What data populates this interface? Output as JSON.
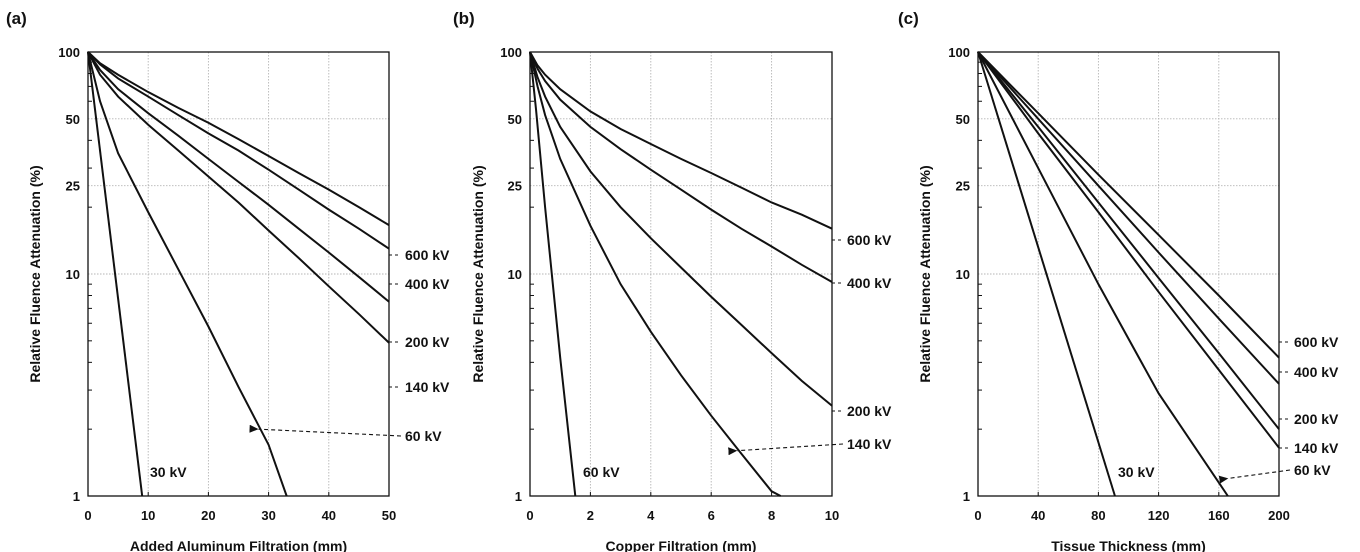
{
  "chart_data": [
    {
      "panel": "(a)",
      "type": "line",
      "xlabel": "Added Aluminum Filtration (mm)",
      "ylabel": "Relative Fluence Attenuation (%)",
      "xlim": [
        0,
        50
      ],
      "ylim": [
        1,
        100
      ],
      "yscale": "log",
      "xticks": [
        0,
        10,
        20,
        30,
        40,
        50
      ],
      "yticks": [
        1,
        10,
        25,
        50,
        100
      ],
      "grid": true,
      "series": [
        {
          "name": "30 kV",
          "x": [
            0,
            9
          ],
          "y": [
            100,
            1
          ]
        },
        {
          "name": "60 kV",
          "x": [
            0,
            2,
            5,
            10,
            15,
            20,
            25,
            30,
            33
          ],
          "y": [
            100,
            60,
            35,
            19,
            10.5,
            5.8,
            3.1,
            1.7,
            1
          ]
        },
        {
          "name": "140 kV",
          "x": [
            0,
            2,
            5,
            10,
            15,
            20,
            25,
            30,
            35,
            40,
            45,
            50
          ],
          "y": [
            100,
            79,
            63,
            47,
            36,
            27.5,
            21,
            15.7,
            11.8,
            8.8,
            6.6,
            4.9
          ]
        },
        {
          "name": "200 kV",
          "x": [
            0,
            2,
            5,
            10,
            15,
            20,
            25,
            30,
            35,
            40,
            45,
            50
          ],
          "y": [
            100,
            83,
            68,
            53,
            42,
            33,
            26,
            20.5,
            16,
            12.5,
            9.7,
            7.5
          ]
        },
        {
          "name": "400 kV",
          "x": [
            0,
            2,
            5,
            10,
            15,
            20,
            25,
            30,
            35,
            40,
            45,
            50
          ],
          "y": [
            100,
            88,
            76,
            63,
            52,
            43,
            36,
            29.5,
            24,
            19.5,
            16,
            13
          ]
        },
        {
          "name": "600 kV",
          "x": [
            0,
            2,
            5,
            10,
            15,
            20,
            25,
            30,
            35,
            40,
            45,
            50
          ],
          "y": [
            100,
            89,
            79,
            66,
            56,
            48,
            40.5,
            34,
            28.5,
            24,
            20,
            16.6
          ]
        }
      ],
      "annotations": [
        {
          "label": "30 kV",
          "placement": "inside"
        },
        {
          "label": "60 kV",
          "placement": "right",
          "arrow_to": {
            "x": 28,
            "y": 2
          }
        }
      ]
    },
    {
      "panel": "(b)",
      "type": "line",
      "xlabel": "Copper Filtration (mm)",
      "ylabel": "Relative Fluence Attenuation (%)",
      "xlim": [
        0,
        10
      ],
      "ylim": [
        1,
        100
      ],
      "yscale": "log",
      "xticks": [
        0,
        2,
        4,
        6,
        8,
        10
      ],
      "yticks": [
        1,
        10,
        25,
        50,
        100
      ],
      "grid": true,
      "series": [
        {
          "name": "60 kV",
          "x": [
            0,
            0.2,
            0.5,
            1,
            1.5
          ],
          "y": [
            100,
            55,
            20,
            4.2,
            1
          ]
        },
        {
          "name": "140 kV",
          "x": [
            0,
            0.25,
            0.5,
            1,
            2,
            3,
            4,
            5,
            6,
            7,
            8,
            8.3
          ],
          "y": [
            100,
            70,
            52,
            33,
            16.5,
            9,
            5.5,
            3.5,
            2.3,
            1.55,
            1.05,
            1
          ]
        },
        {
          "name": "200 kV",
          "x": [
            0,
            0.25,
            0.5,
            1,
            2,
            3,
            4,
            5,
            6,
            7,
            8,
            9,
            10
          ],
          "y": [
            100,
            77,
            63,
            46,
            29,
            20,
            14.5,
            10.7,
            7.9,
            5.9,
            4.4,
            3.3,
            2.55
          ]
        },
        {
          "name": "400 kV",
          "x": [
            0,
            0.25,
            0.5,
            1,
            2,
            3,
            4,
            5,
            6,
            7,
            8,
            9,
            10
          ],
          "y": [
            100,
            84,
            74,
            61,
            46,
            36.5,
            29.5,
            24,
            19.5,
            16,
            13.3,
            11,
            9.2
          ]
        },
        {
          "name": "600 kV",
          "x": [
            0,
            0.25,
            0.5,
            1,
            2,
            3,
            4,
            5,
            6,
            7,
            8,
            9,
            10
          ],
          "y": [
            100,
            87,
            79,
            68,
            54,
            45,
            38.5,
            33,
            28.5,
            24.5,
            21,
            18.5,
            16
          ]
        }
      ],
      "annotations": [
        {
          "label": "60 kV",
          "placement": "inside"
        },
        {
          "label": "140 kV",
          "placement": "right",
          "arrow_to": {
            "x": 6.8,
            "y": 1.6
          }
        }
      ]
    },
    {
      "panel": "(c)",
      "type": "line",
      "xlabel": "Tissue Thickness (mm)",
      "ylabel": "Relative Fluence Attenuation (%)",
      "xlim": [
        0,
        200
      ],
      "ylim": [
        1,
        100
      ],
      "yscale": "log",
      "xticks": [
        0,
        40,
        80,
        120,
        160,
        200
      ],
      "yticks": [
        1,
        10,
        25,
        50,
        100
      ],
      "grid": true,
      "series": [
        {
          "name": "30 kV",
          "x": [
            0,
            91
          ],
          "y": [
            100,
            1
          ]
        },
        {
          "name": "60 kV",
          "x": [
            0,
            40,
            80,
            120,
            160,
            166
          ],
          "y": [
            100,
            30,
            9,
            2.9,
            1.15,
            1
          ]
        },
        {
          "name": "140 kV",
          "x": [
            0,
            40,
            80,
            120,
            160,
            200
          ],
          "y": [
            100,
            43,
            19,
            8.3,
            3.7,
            1.65
          ]
        },
        {
          "name": "200 kV",
          "x": [
            0,
            40,
            80,
            120,
            160,
            200
          ],
          "y": [
            100,
            46,
            21,
            9.6,
            4.4,
            2
          ]
        },
        {
          "name": "400 kV",
          "x": [
            0,
            40,
            80,
            120,
            160,
            200
          ],
          "y": [
            100,
            50,
            25,
            12.5,
            6.3,
            3.2
          ]
        },
        {
          "name": "600 kV",
          "x": [
            0,
            40,
            80,
            120,
            160,
            200
          ],
          "y": [
            100,
            53,
            28,
            15,
            8,
            4.2
          ]
        }
      ],
      "annotations": [
        {
          "label": "30 kV",
          "placement": "inside"
        },
        {
          "label": "60 kV",
          "placement": "right",
          "arrow_to": {
            "x": 165,
            "y": 1.2
          }
        }
      ]
    }
  ]
}
